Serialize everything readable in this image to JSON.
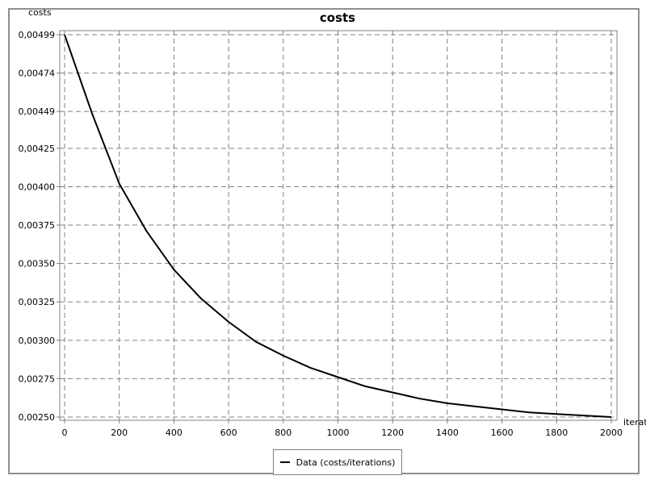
{
  "chart_data": {
    "type": "line",
    "title": "costs",
    "ylabel": "costs",
    "xlabel": "iterat",
    "xlim": [
      0,
      2000
    ],
    "ylim": [
      0.0025,
      0.00499
    ],
    "x_ticks": [
      0,
      200,
      400,
      600,
      800,
      1000,
      1200,
      1400,
      1600,
      1800,
      2000
    ],
    "x_tick_labels": [
      "0",
      "200",
      "400",
      "600",
      "800",
      "1000",
      "1200",
      "1400",
      "1600",
      "1800",
      "2000"
    ],
    "y_ticks": [
      0.0025,
      0.00275,
      0.003,
      0.00325,
      0.0035,
      0.00375,
      0.004,
      0.00425,
      0.00449,
      0.00474,
      0.00499
    ],
    "y_tick_labels": [
      "0,00250",
      "0,00275",
      "0,00300",
      "0,00325",
      "0,00350",
      "0,00375",
      "0,00400",
      "0,00425",
      "0,00449",
      "0,00474",
      "0,00499"
    ],
    "grid": true,
    "legend_position": "bottom",
    "series": [
      {
        "name": "Data (costs/iterations)",
        "color": "#000000",
        "x": [
          0,
          100,
          200,
          300,
          400,
          500,
          600,
          700,
          800,
          900,
          1000,
          1100,
          1200,
          1300,
          1400,
          1500,
          1600,
          1700,
          1800,
          1900,
          2000
        ],
        "y": [
          0.00499,
          0.00448,
          0.00402,
          0.00371,
          0.00346,
          0.00327,
          0.00312,
          0.00299,
          0.0029,
          0.00282,
          0.00276,
          0.0027,
          0.00266,
          0.00262,
          0.00259,
          0.00257,
          0.00255,
          0.00253,
          0.00252,
          0.00251,
          0.0025
        ]
      }
    ]
  }
}
